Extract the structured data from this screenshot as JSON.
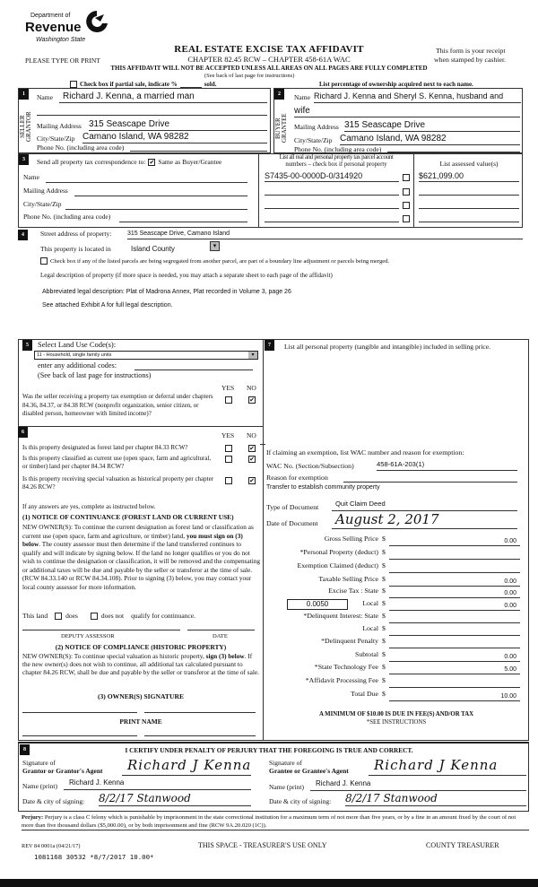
{
  "header": {
    "logo": {
      "line1": "Department of",
      "line2": "Revenue",
      "line3": "Washington State"
    },
    "title": "REAL ESTATE EXCISE TAX AFFIDAVIT",
    "chapter": "CHAPTER 82.45 RCW – CHAPTER 458-61A WAC",
    "type_or_print": "PLEASE TYPE OR PRINT",
    "receipt_note_1": "This form is your receipt",
    "receipt_note_2": "when stamped by cashier.",
    "warning": "THIS AFFIDAVIT WILL NOT BE ACCEPTED UNLESS ALL AREAS ON ALL PAGES ARE FULLY COMPLETED",
    "see_back": "(See back of last page for instructions)",
    "partial_sale": "Check box if partial sale, indicate %",
    "partial_sale_sold": "sold.",
    "ownership_note": "List percentage of ownership acquired next to each name."
  },
  "section1": {
    "num": "1",
    "side_label": "SELLER GRANTOR",
    "name_label": "Name",
    "name": "Richard J. Kenna, a married man",
    "mailing_label": "Mailing Address",
    "mailing": "315 Seascape Drive",
    "city_label": "City/State/Zip",
    "city": "Camano Island, WA 98282",
    "phone_label": "Phone No. (including area code)"
  },
  "section2": {
    "num": "2",
    "side_label": "BUYER GRANTEE",
    "name_label": "Name",
    "name": "Richard J. Kenna and Sheryl S. Kenna, husband and",
    "name_cont": "wife",
    "mailing_label": "Mailing Address",
    "mailing": "315 Seascape Drive",
    "city_label": "City/State/Zip",
    "city": "Camano Island, WA 98282",
    "phone_label": "Phone No. (including area code)"
  },
  "section3": {
    "num": "3",
    "send_label": "Send all property tax correspondence to:",
    "same_as_label": "Same as Buyer/Grantee",
    "same_as_checked": true,
    "name_label": "Name",
    "mailing_label": "Mailing Address",
    "city_label": "City/State/Zip",
    "phone_label": "Phone No. (including area code)",
    "parcel_header_1": "List all real and personal property tax parcel account",
    "parcel_header_2": "numbers – check box if personal property",
    "assessed_header": "List assessed value(s)",
    "parcels": [
      {
        "number": "S7435-00-0000D-0/314920",
        "personal": false,
        "value": "$621,099.00"
      }
    ]
  },
  "section4": {
    "num": "4",
    "street_label": "Street address of property:",
    "street": "315 Seascape Drive, Camano Island",
    "located_label": "This property is located in",
    "county": "Island County",
    "segregated_label": "Check box if any of the listed parcels are being segregated from another parcel, are part of a boundary line adjustment or parcels being merged.",
    "legal_label": "Legal description of property (if more space is needed, you may attach a separate sheet to each page of the affidavit)",
    "legal_abbrev": "Abbreviated legal description: Plat of Madrona Annex, Plat recorded in Volume 3, page 26",
    "legal_see": "See attached Exhibit A for full legal description."
  },
  "section5": {
    "num": "5",
    "select_label": "Select Land Use Code(s):",
    "land_use": "11 - Household, single family units",
    "additional_label": "enter any additional codes:",
    "see_back": "(See back of last page for instructions)",
    "yes": "YES",
    "no": "NO",
    "question": "Was the seller receiving a property tax exemption or deferral under chapters 84.36, 84.37, or 84.38 RCW (nonprofit organization, senior citizen, or disabled person, homeowner with limited income)?",
    "answer": "NO"
  },
  "section6": {
    "num": "6",
    "yes": "YES",
    "no": "NO",
    "questions": [
      {
        "text": "Is this property designated as forest land per chapter 84.33 RCW?",
        "answer": "NO"
      },
      {
        "text": "Is this property classified as current use (open space, farm and agricultural, or timber) land per chapter 84.34 RCW?",
        "answer": "NO"
      },
      {
        "text": "Is this property receiving special valuation as historical property per chapter 84.26 RCW?",
        "answer": "NO"
      }
    ],
    "if_yes": "If any answers are yes, complete as instructed below.",
    "notice1_title": "(1) NOTICE OF CONTINUANCE  (FOREST LAND OR CURRENT USE)",
    "notice1_a": "NEW OWNER(S): To continue the current designation as forest land or classification as current use (open space, farm and agriculture, or timber) land, ",
    "notice1_bold": "you must sign on (3) below",
    "notice1_b": ". The county assessor must then determine if the land transferred continues to qualify and will indicate by signing below. If the land no longer qualifies or you do not wish to continue the designation or classification, it will be removed and the compensating or additional taxes will be due and payable by the seller or transferor at the time of sale. (RCW 84.33.140 or RCW 84.34.108). Prior to signing (3) below, you may contact your local county assessor for more information.",
    "this_land": "This land",
    "does": "does",
    "does_not": "does not",
    "qualify": "qualify for continuance.",
    "deputy_assessor": "DEPUTY ASSESSOR",
    "date": "DATE",
    "notice2_title": "(2) NOTICE OF COMPLIANCE (HISTORIC PROPERTY)",
    "notice2_a": "NEW OWNER(S): To continue special valuation as historic property, ",
    "notice2_bold": "sign (3) below",
    "notice2_b": ". If the new owner(s) does not wish to continue, all additional tax calculated pursuant to chapter 84.26 RCW, shall be due and payable by the seller or transferor at the time of sale.",
    "owner_signature": "(3)  OWNER(S) SIGNATURE",
    "print_name": "PRINT NAME"
  },
  "section7": {
    "num": "7",
    "personal_property_label": "List all  personal property (tangible and intangible) included in selling price.",
    "exemption_label": "If claiming an exemption, list WAC number and reason for exemption:",
    "wac_label": "WAC No. (Section/Subsection)",
    "wac": "458-61A-203(1)",
    "reason_label": "Reason for exemption",
    "reason": "Transfer to establish community property",
    "doc_type_label": "Type of Document",
    "doc_type": "Quit Claim Deed",
    "doc_date_label": "Date of Document",
    "doc_date": "August 2, 2017",
    "local_rate": "0.0050",
    "fees": [
      {
        "label": "Gross Selling Price",
        "value": "0.00"
      },
      {
        "label": "*Personal Property (deduct)",
        "value": ""
      },
      {
        "label": "Exemption Claimed (deduct)",
        "value": ""
      },
      {
        "label": "Taxable Selling Price",
        "value": "0.00"
      },
      {
        "label": "Excise Tax : State",
        "value": "0.00"
      },
      {
        "label": "Local",
        "value": "0.00"
      },
      {
        "label": "*Delinquent Interest: State",
        "value": ""
      },
      {
        "label": "Local",
        "value": ""
      },
      {
        "label": "*Delinquent Penalty",
        "value": ""
      },
      {
        "label": "Subtotal",
        "value": "0.00"
      },
      {
        "label": "*State Technology Fee",
        "value": "5.00"
      },
      {
        "label": "*Affidavit Processing Fee",
        "value": ""
      },
      {
        "label": "Total Due",
        "value": "10.00"
      }
    ],
    "currency": "$",
    "minimum": "A MINIMUM OF $10.00 IS DUE IN FEE(S) AND/OR TAX",
    "see_instructions": "*SEE INSTRUCTIONS"
  },
  "section8": {
    "num": "8",
    "certify": "I CERTIFY UNDER PENALTY OF PERJURY THAT THE FOREGOING IS TRUE AND CORRECT.",
    "grantor_sig_1": "Signature of",
    "grantor_sig_2": "Grantor or Grantor's Agent",
    "grantor_signature": "Richard J Kenna",
    "grantee_sig_1": "Signature of",
    "grantee_sig_2": "Grantee or Grantee's Agent",
    "grantee_signature": "Richard J Kenna",
    "name_label": "Name (print)",
    "grantor_name": "Richard J. Kenna",
    "grantee_name": "Richard J. Kenna",
    "date_label": "Date & city of signing:",
    "grantor_date": "8/2/17 Stanwood",
    "grantee_date": "8/2/17 Stanwood"
  },
  "footer": {
    "perjury_label": "Perjury:",
    "perjury_text": " Perjury is a class C felony which is punishable by imprisonment in the state correctional institution for a maximum term of not more than five years, or by a fine in an amount fixed by the court of not more than five thousand dollars ($5,000.00), or by both imprisonment and fine (RCW 9A.20.020 (1C)).",
    "form_id": "REV 84 0001a (04/21/17)",
    "treasurer_space": "THIS SPACE - TREASURER'S USE ONLY",
    "county_treasurer": "COUNTY TREASURER",
    "stamp": "1081168 30532 *8/7/2017 10.00*"
  }
}
